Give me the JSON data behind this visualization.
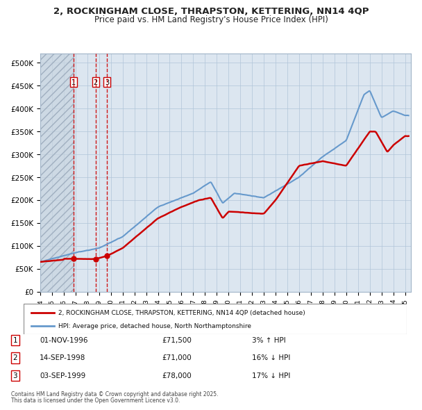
{
  "title_line1": "2, ROCKINGHAM CLOSE, THRAPSTON, KETTERING, NN14 4QP",
  "title_line2": "Price paid vs. HM Land Registry's House Price Index (HPI)",
  "ylabel": "",
  "xlim_start": 1994.0,
  "xlim_end": 2025.5,
  "ylim_min": 0,
  "ylim_max": 520000,
  "yticks": [
    0,
    50000,
    100000,
    150000,
    200000,
    250000,
    300000,
    350000,
    400000,
    450000,
    500000
  ],
  "ytick_labels": [
    "£0",
    "£50K",
    "£100K",
    "£150K",
    "£200K",
    "£250K",
    "£300K",
    "£350K",
    "£400K",
    "£450K",
    "£500K"
  ],
  "xticks": [
    1994,
    1995,
    1996,
    1997,
    1998,
    1999,
    2000,
    2001,
    2002,
    2003,
    2004,
    2005,
    2006,
    2007,
    2008,
    2009,
    2010,
    2011,
    2012,
    2013,
    2014,
    2015,
    2016,
    2017,
    2018,
    2019,
    2020,
    2021,
    2022,
    2023,
    2024,
    2025
  ],
  "sale_color": "#cc0000",
  "hpi_color": "#6699cc",
  "background_color": "#dce6f0",
  "plot_bg_color": "#dce6f0",
  "hatch_color": "#b0b8c8",
  "vline_color": "#cc0000",
  "legend_box_color": "#ffffff",
  "sale_label": "2, ROCKINGHAM CLOSE, THRAPSTON, KETTERING, NN14 4QP (detached house)",
  "hpi_label": "HPI: Average price, detached house, North Northamptonshire",
  "transactions": [
    {
      "num": 1,
      "date": 1996.836,
      "price": 71500,
      "label": "01-NOV-1996",
      "pct": "3%",
      "dir": "↑"
    },
    {
      "num": 2,
      "date": 1998.706,
      "price": 71000,
      "label": "14-SEP-1998",
      "pct": "16%",
      "dir": "↓"
    },
    {
      "num": 3,
      "date": 1999.673,
      "price": 78000,
      "label": "03-SEP-1999",
      "pct": "17%",
      "dir": "↓"
    }
  ],
  "footer_line1": "Contains HM Land Registry data © Crown copyright and database right 2025.",
  "footer_line2": "This data is licensed under the Open Government Licence v3.0."
}
